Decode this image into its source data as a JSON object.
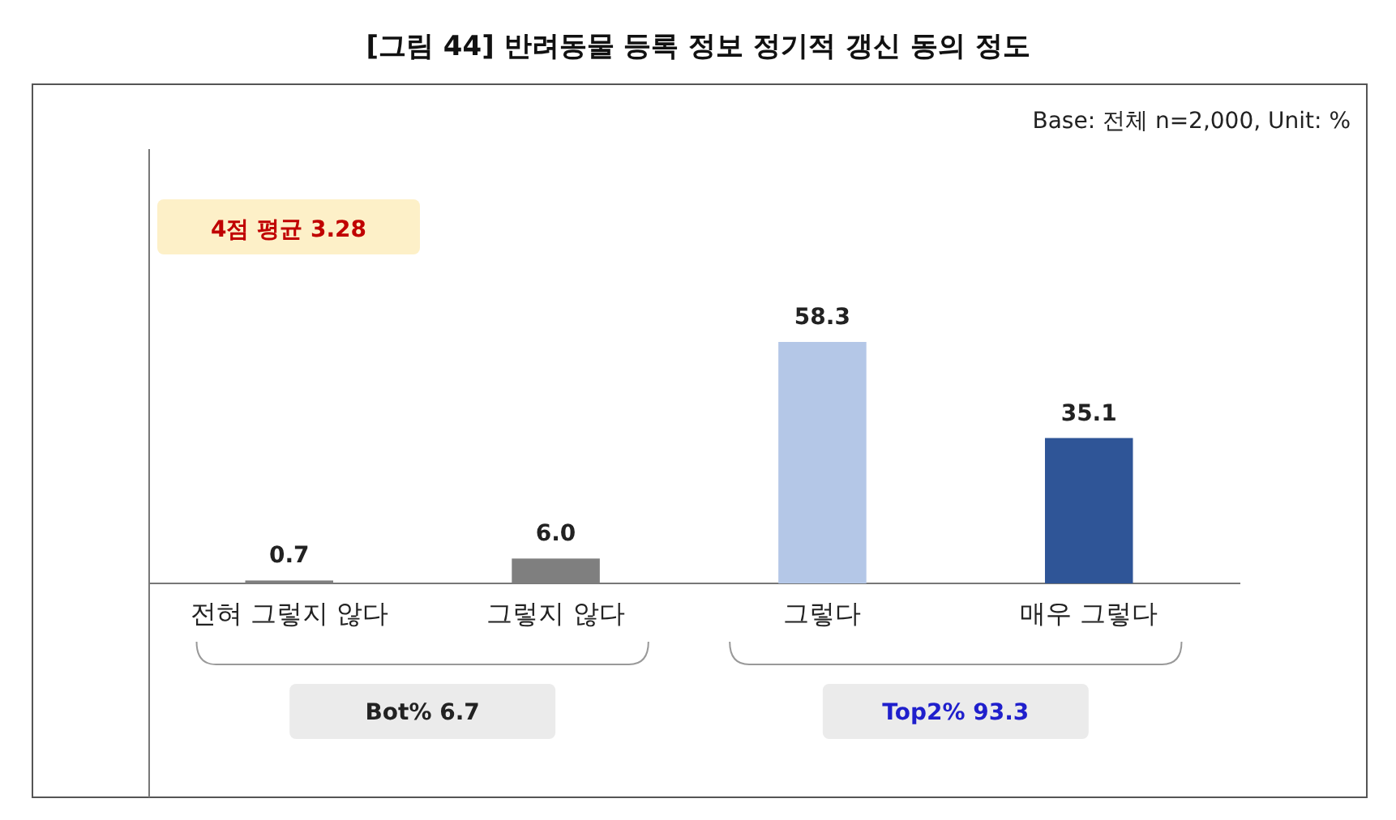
{
  "chart_data": {
    "type": "bar",
    "title": "[그림 44] 반려동물 등록 정보 정기적 갱신 동의 정도",
    "categories": [
      "전혀 그렇지 않다",
      "그렇지 않다",
      "그렇다",
      "매우 그렇다"
    ],
    "values": [
      0.7,
      6.0,
      58.3,
      35.1
    ],
    "colors": [
      "#7f7f7f",
      "#7f7f7f",
      "#b4c7e7",
      "#2f5597"
    ],
    "value_labels": [
      "0.7",
      "6.0",
      "58.3",
      "35.1"
    ],
    "annotations": [
      "Base: 전체 n=2,000, Unit: %",
      "4점 평균 3.28",
      "Bot% 6.7",
      "Top2% 93.3"
    ]
  }
}
